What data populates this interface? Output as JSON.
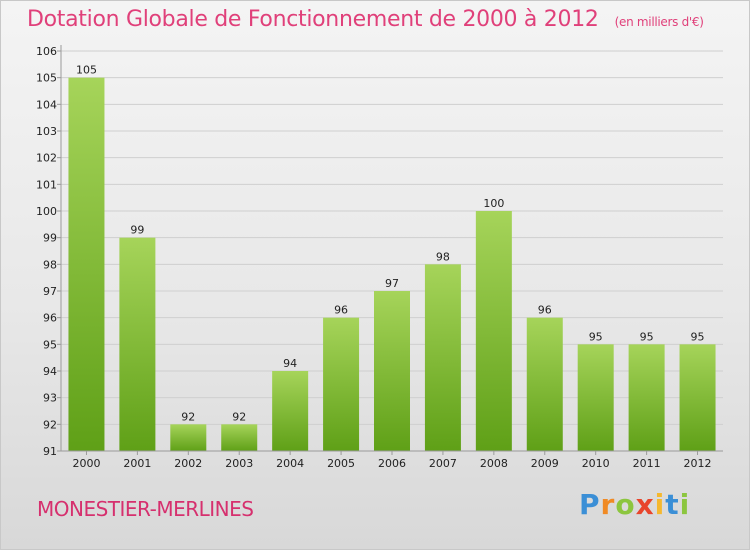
{
  "title": "Dotation Globale de Fonctionnement de 2000 à 2012",
  "unit": "(en milliers d'€)",
  "commune": "MONESTIER-MERLINES",
  "logo": {
    "letters": [
      "P",
      "r",
      "o",
      "x",
      "i",
      "t",
      "i"
    ]
  },
  "colors": {
    "title": "#e0407a",
    "commune": "#d6306e",
    "bar_top": "#a6d45a",
    "bar_bottom": "#5fa017",
    "grid": "#cfcfcf"
  },
  "chart_data": {
    "type": "bar",
    "categories": [
      "2000",
      "2001",
      "2002",
      "2003",
      "2004",
      "2005",
      "2006",
      "2007",
      "2008",
      "2009",
      "2010",
      "2011",
      "2012"
    ],
    "values": [
      105,
      99,
      92,
      92,
      94,
      96,
      97,
      98,
      100,
      96,
      95,
      95,
      95
    ],
    "ylim": [
      91,
      106
    ],
    "yticks": [
      91,
      92,
      93,
      94,
      95,
      96,
      97,
      98,
      99,
      100,
      101,
      102,
      103,
      104,
      105,
      106
    ],
    "grid": true,
    "xlabel": "",
    "ylabel": ""
  }
}
